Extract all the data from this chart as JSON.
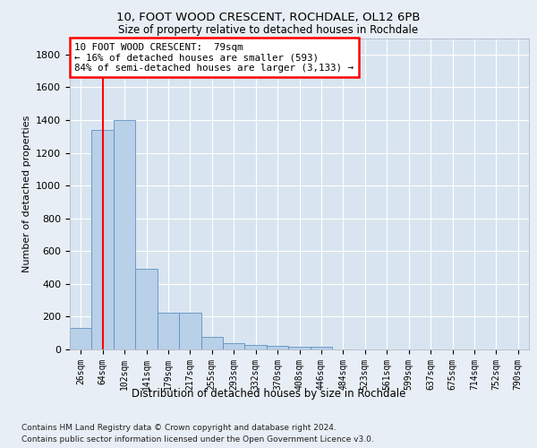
{
  "title1": "10, FOOT WOOD CRESCENT, ROCHDALE, OL12 6PB",
  "title2": "Size of property relative to detached houses in Rochdale",
  "xlabel": "Distribution of detached houses by size in Rochdale",
  "ylabel": "Number of detached properties",
  "categories": [
    "26sqm",
    "64sqm",
    "102sqm",
    "141sqm",
    "179sqm",
    "217sqm",
    "255sqm",
    "293sqm",
    "332sqm",
    "370sqm",
    "408sqm",
    "446sqm",
    "484sqm",
    "523sqm",
    "561sqm",
    "599sqm",
    "637sqm",
    "675sqm",
    "714sqm",
    "752sqm",
    "790sqm"
  ],
  "values": [
    130,
    1340,
    1400,
    490,
    225,
    225,
    75,
    40,
    25,
    20,
    15,
    15,
    0,
    0,
    0,
    0,
    0,
    0,
    0,
    0,
    0
  ],
  "bar_color": "#b8d0e8",
  "bar_edge_color": "#6090c0",
  "vline_x": 1.0,
  "annotation_text": "10 FOOT WOOD CRESCENT:  79sqm\n← 16% of detached houses are smaller (593)\n84% of semi-detached houses are larger (3,133) →",
  "annotation_box_color": "white",
  "annotation_box_edge": "red",
  "vline_color": "red",
  "ylim": [
    0,
    1900
  ],
  "yticks": [
    0,
    200,
    400,
    600,
    800,
    1000,
    1200,
    1400,
    1600,
    1800
  ],
  "footer1": "Contains HM Land Registry data © Crown copyright and database right 2024.",
  "footer2": "Contains public sector information licensed under the Open Government Licence v3.0.",
  "bg_color": "#e8eef5",
  "plot_bg_color": "#d8e5f0"
}
